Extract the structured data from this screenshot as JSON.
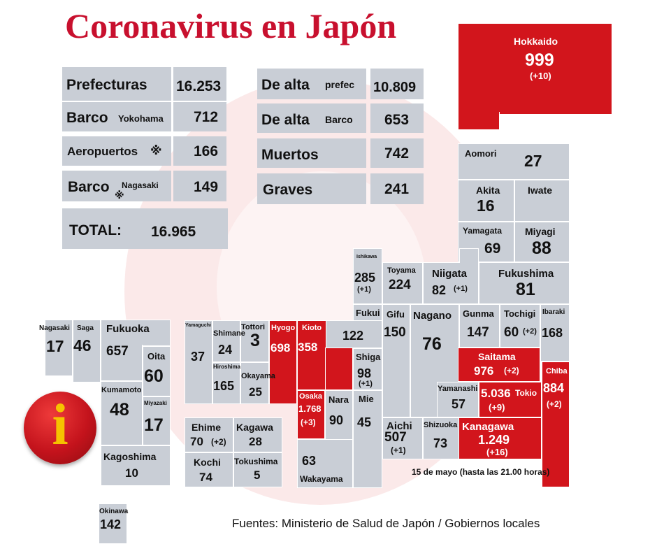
{
  "title": "Coronavirus en Japón",
  "stats_left": {
    "prefecturas": {
      "label": "Prefecturas",
      "value": "16.253"
    },
    "barco_yokohama": {
      "label": "Barco",
      "sub": "Yokohama",
      "value": "712"
    },
    "aeropuertos": {
      "label": "Aeropuertos",
      "mark": "※",
      "value": "166"
    },
    "barco_nagasaki": {
      "label": "Barco",
      "mark": "※",
      "sub": "Nagasaki",
      "value": "149"
    },
    "total": {
      "label": "TOTAL:",
      "value": "16.965"
    }
  },
  "stats_right": {
    "de_alta_prefec": {
      "label": "De alta",
      "sub": "prefec",
      "value": "10.809"
    },
    "de_alta_barco": {
      "label": "De alta",
      "sub": "Barco",
      "value": "653"
    },
    "muertos": {
      "label": "Muertos",
      "value": "742"
    },
    "graves": {
      "label": "Graves",
      "value": "241"
    }
  },
  "prefectures": {
    "hokkaido": {
      "name": "Hokkaido",
      "value": "999",
      "change": "(+10)"
    },
    "aomori": {
      "name": "Aomori",
      "value": "27"
    },
    "akita": {
      "name": "Akita",
      "value": "16"
    },
    "iwate": {
      "name": "Iwate"
    },
    "yamagata": {
      "name": "Yamagata",
      "value": "69"
    },
    "miyagi": {
      "name": "Miyagi",
      "value": "88"
    },
    "ishikawa": {
      "name": "Ishikawa",
      "value": "285",
      "change": "(+1)"
    },
    "toyama": {
      "name": "Toyama",
      "value": "224"
    },
    "niigata": {
      "name": "Niigata",
      "value": "82",
      "change": "(+1)"
    },
    "fukushima": {
      "name": "Fukushima",
      "value": "81"
    },
    "fukui": {
      "name": "Fukui",
      "value": "122"
    },
    "gifu": {
      "name": "Gifu",
      "value": "150"
    },
    "nagano": {
      "name": "Nagano",
      "value": "76"
    },
    "gunma": {
      "name": "Gunma",
      "value": "147"
    },
    "tochigi": {
      "name": "Tochigi",
      "value": "60",
      "change": "(+2)"
    },
    "ibaraki": {
      "name": "Ibaraki",
      "value": "168"
    },
    "saitama": {
      "name": "Saitama",
      "value": "976",
      "change": "(+2)"
    },
    "chiba": {
      "name": "Chiba",
      "value": "884",
      "change": "(+2)"
    },
    "tokio": {
      "name": "Tokio",
      "value": "5.036",
      "change": "(+9)"
    },
    "yamanashi": {
      "name": "Yamanashi",
      "value": "57"
    },
    "kanagawa": {
      "name": "Kanagawa",
      "value": "1.249",
      "change": "(+16)"
    },
    "shizuoka": {
      "name": "Shizuoka",
      "value": "73"
    },
    "aichi": {
      "name": "Aichi",
      "value": "507",
      "change": "(+1)"
    },
    "shiga": {
      "name": "Shiga",
      "value": "98",
      "change": "(+1)"
    },
    "mie": {
      "name": "Mie",
      "value": "45"
    },
    "nara": {
      "name": "Nara",
      "value": "90"
    },
    "wakayama": {
      "name": "Wakayama",
      "value": "63"
    },
    "osaka": {
      "name": "Osaka",
      "value": "1.768",
      "change": "(+3)"
    },
    "kioto": {
      "name": "Kioto",
      "value": "358"
    },
    "hyogo": {
      "name": "Hyogo",
      "value": "698"
    },
    "tottori": {
      "name": "Tottori",
      "value": "3"
    },
    "shimane": {
      "name": "Shimane",
      "value": "24"
    },
    "yamaguchi": {
      "name": "Yamaguchi",
      "value": "37"
    },
    "hiroshima": {
      "name": "Hiroshima",
      "value": "165"
    },
    "okayama": {
      "name": "Okayama",
      "value": "25"
    },
    "ehime": {
      "name": "Ehime",
      "value": "70",
      "change": "(+2)"
    },
    "kagawa": {
      "name": "Kagawa",
      "value": "28"
    },
    "kochi": {
      "name": "Kochi",
      "value": "74"
    },
    "tokushima": {
      "name": "Tokushima",
      "value": "5"
    },
    "nagasaki": {
      "name": "Nagasaki",
      "value": "17"
    },
    "saga": {
      "name": "Saga",
      "value": "46"
    },
    "fukuoka": {
      "name": "Fukuoka",
      "value": "657"
    },
    "oita": {
      "name": "Oita",
      "value": "60"
    },
    "kumamoto": {
      "name": "Kumamoto",
      "value": "48"
    },
    "miyazaki": {
      "name": "Miyazaki",
      "value": "17"
    },
    "kagoshima": {
      "name": "Kagoshima",
      "value": "10"
    },
    "okinawa": {
      "name": "Okinawa",
      "value": "142"
    }
  },
  "date_note": "15 de mayo  (hasta las 21.00 horas)",
  "sources": "Fuentes: Ministerio de Salud de Japón / Gobiernos locales",
  "info_icon": {
    "symbol": "i",
    "icon": "info-icon"
  },
  "colors": {
    "red": "#d2151c",
    "gray": "#c9ced6",
    "title_red": "#c8102e",
    "info_yellow": "#f6c200"
  }
}
